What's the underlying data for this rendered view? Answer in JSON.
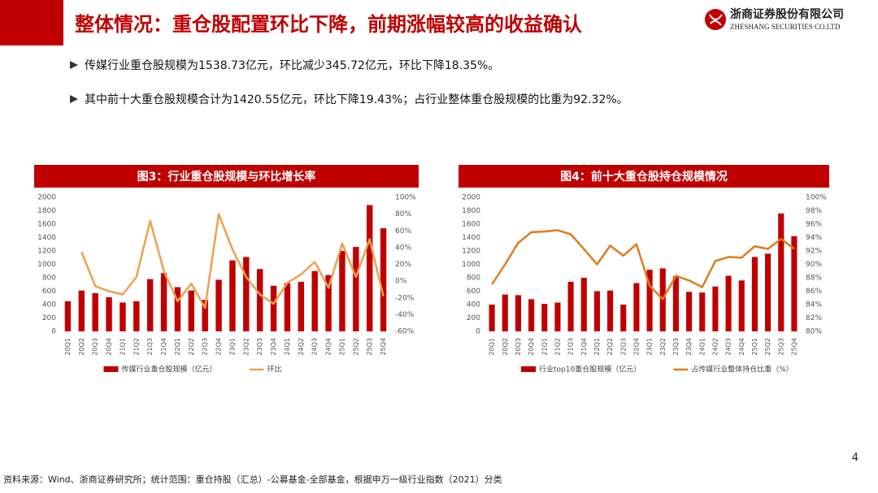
{
  "header": {
    "title": "整体情况：重仓股配置环比下降，前期涨幅较高的收益确认",
    "company": "浙商证券股份有限公司",
    "company_en": "ZHESHANG SECURITIES CO.LTD"
  },
  "bullets": [
    "传媒行业重仓股规模为1538.73亿元，环比减少345.72亿元，环比下降18.35%。",
    "其中前十大重仓股规模合计为1420.55亿元，环比下降19.43%；占行业整体重仓股规模的比重为92.32%。"
  ],
  "page_number": "4",
  "source": "资料来源：Wind、浙商证券研究所；统计范围：重仓持股（汇总）-公募基金-全部基金，根据申万一级行业指数（2021）分类",
  "chart_data": [
    {
      "type": "bar",
      "title": "图3：行业重仓股规模与环比增长率",
      "categories": [
        "20Q1",
        "20Q2",
        "20Q3",
        "20Q4",
        "21Q1",
        "21Q2",
        "21Q3",
        "21Q4",
        "22Q1",
        "22Q2",
        "22Q3",
        "22Q4",
        "23Q1",
        "23Q2",
        "23Q3",
        "23Q4",
        "24Q1",
        "24Q2",
        "24Q3",
        "24Q4",
        "25Q1",
        "25Q2",
        "25Q3",
        "25Q4"
      ],
      "series": [
        {
          "name": "传媒行业重仓股规模（亿元）",
          "type": "bar",
          "color": "#c00000",
          "values": [
            450,
            610,
            570,
            510,
            430,
            450,
            780,
            870,
            660,
            610,
            470,
            770,
            1060,
            1110,
            930,
            680,
            720,
            740,
            900,
            840,
            1200,
            1260,
            1885,
            1539
          ]
        },
        {
          "name": "环比",
          "type": "line",
          "axis": "y2",
          "color": "#f0a050",
          "values": [
            null,
            35,
            -6,
            -12,
            -16,
            5,
            72,
            12,
            -24,
            -3,
            -32,
            80,
            38,
            5,
            -16,
            -27,
            -2,
            8,
            23,
            -8,
            45,
            5,
            50,
            -18
          ]
        }
      ],
      "ylim": [
        0,
        2000
      ],
      "yticks": [
        0,
        200,
        400,
        600,
        800,
        1000,
        1200,
        1400,
        1600,
        1800,
        2000
      ],
      "y2lim": [
        -60,
        100
      ],
      "y2ticks": [
        {
          "value": -60,
          "label": "-60%"
        },
        {
          "value": -40,
          "label": "-40%"
        },
        {
          "value": -20,
          "label": "-20%"
        },
        {
          "value": 0,
          "label": "0%"
        },
        {
          "value": 20,
          "label": "20%"
        },
        {
          "value": 40,
          "label": "40%"
        },
        {
          "value": 60,
          "label": "60%"
        },
        {
          "value": 80,
          "label": "80%"
        },
        {
          "value": 100,
          "label": "100%"
        }
      ]
    },
    {
      "type": "bar",
      "title": "图4：前十大重仓股持仓规模情况",
      "categories": [
        "20Q1",
        "20Q2",
        "20Q3",
        "20Q4",
        "21Q1",
        "21Q2",
        "21Q3",
        "21Q4",
        "22Q1",
        "22Q2",
        "22Q3",
        "22Q4",
        "23Q1",
        "23Q2",
        "23Q3",
        "23Q4",
        "24Q1",
        "24Q2",
        "24Q3",
        "24Q4",
        "25Q1",
        "25Q2",
        "25Q3",
        "25Q4"
      ],
      "series": [
        {
          "name": "行业top10重仓股规模（亿元）",
          "type": "bar",
          "color": "#c00000",
          "values": [
            400,
            550,
            540,
            480,
            410,
            430,
            740,
            800,
            600,
            610,
            400,
            720,
            920,
            940,
            820,
            590,
            580,
            670,
            830,
            760,
            1110,
            1160,
            1760,
            1421
          ]
        },
        {
          "name": "占传媒行业整体持仓比重（%）",
          "type": "line",
          "axis": "y2",
          "color": "#e07b20",
          "values": [
            87,
            90,
            93.2,
            94.8,
            94.9,
            95.1,
            94.5,
            92.3,
            90,
            92.8,
            91.3,
            93,
            86.8,
            84.8,
            88.3,
            87.6,
            86.6,
            90.5,
            91.1,
            91,
            92.7,
            92.3,
            93.8,
            92.3
          ]
        }
      ],
      "ylim": [
        0,
        2000
      ],
      "yticks": [
        0,
        200,
        400,
        600,
        800,
        1000,
        1200,
        1400,
        1600,
        1800,
        2000
      ],
      "y2lim": [
        80,
        100
      ],
      "y2ticks": [
        {
          "value": 80,
          "label": "80%"
        },
        {
          "value": 82,
          "label": "82%"
        },
        {
          "value": 84,
          "label": "84%"
        },
        {
          "value": 86,
          "label": "86%"
        },
        {
          "value": 88,
          "label": "88%"
        },
        {
          "value": 90,
          "label": "90%"
        },
        {
          "value": 92,
          "label": "92%"
        },
        {
          "value": 94,
          "label": "94%"
        },
        {
          "value": 96,
          "label": "96%"
        },
        {
          "value": 98,
          "label": "98%"
        },
        {
          "value": 100,
          "label": "100%"
        }
      ]
    }
  ]
}
